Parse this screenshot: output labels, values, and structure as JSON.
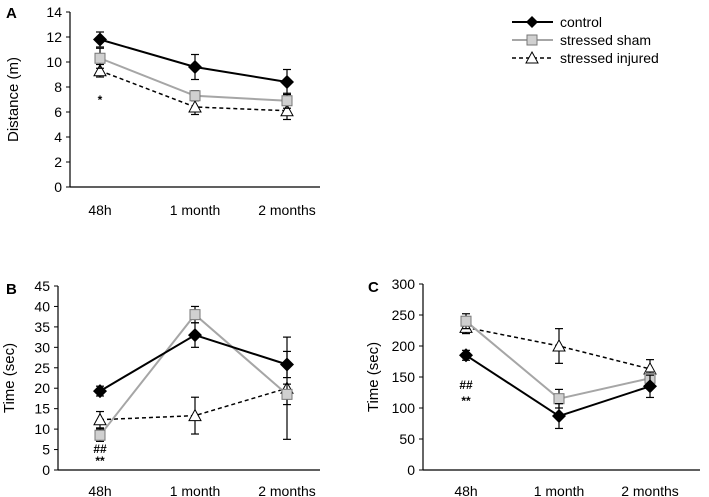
{
  "chart_data": [
    {
      "panel_label": "A",
      "type": "line",
      "categories": [
        "48h",
        "1 month",
        "2 months"
      ],
      "ylabel": "Distance (m)",
      "ylim": [
        0,
        14
      ],
      "yticks": [
        0,
        2,
        4,
        6,
        8,
        10,
        12,
        14
      ],
      "series": [
        {
          "name": "control",
          "values": [
            11.8,
            9.6,
            8.4
          ],
          "errors": [
            0.6,
            1.0,
            1.0
          ]
        },
        {
          "name": "stressed sham",
          "values": [
            10.3,
            7.3,
            6.9
          ],
          "errors": [
            0.8,
            0.4,
            0.6
          ]
        },
        {
          "name": "stressed injured",
          "values": [
            9.3,
            6.4,
            6.1
          ],
          "errors": [
            0.5,
            0.6,
            0.7
          ]
        }
      ],
      "annotations": [
        {
          "category_index": 0,
          "lines": [
            "*"
          ]
        }
      ]
    },
    {
      "panel_label": "B",
      "type": "line",
      "categories": [
        "48h",
        "1 month",
        "2 months"
      ],
      "ylabel": "Time (sec)",
      "ylim": [
        0,
        45
      ],
      "yticks": [
        0,
        5,
        10,
        15,
        20,
        25,
        30,
        35,
        40,
        45
      ],
      "series": [
        {
          "name": "control",
          "values": [
            19.3,
            33.0,
            25.8
          ],
          "errors": [
            1.2,
            3.0,
            3.2
          ]
        },
        {
          "name": "stressed sham",
          "values": [
            8.5,
            38.0,
            18.5
          ],
          "errors": [
            1.5,
            2.0,
            2.5
          ]
        },
        {
          "name": "stressed injured",
          "values": [
            12.3,
            13.3,
            20.0
          ],
          "errors": [
            2.0,
            4.5,
            12.5
          ]
        }
      ],
      "annotations": [
        {
          "category_index": 0,
          "lines": [
            "##",
            "**"
          ]
        }
      ]
    },
    {
      "panel_label": "C",
      "type": "line",
      "categories": [
        "48h",
        "1 month",
        "2 months"
      ],
      "ylabel": "Time (sec)",
      "ylim": [
        0,
        300
      ],
      "yticks": [
        0,
        50,
        100,
        150,
        200,
        250,
        300
      ],
      "series": [
        {
          "name": "control",
          "values": [
            185,
            87,
            135
          ],
          "errors": [
            8,
            20,
            18
          ]
        },
        {
          "name": "stressed sham",
          "values": [
            240,
            115,
            148
          ],
          "errors": [
            12,
            15,
            10
          ]
        },
        {
          "name": "stressed injured",
          "values": [
            230,
            200,
            163
          ],
          "errors": [
            10,
            28,
            15
          ]
        }
      ],
      "annotations": [
        {
          "category_index": 0,
          "lines": [
            "##",
            "**"
          ]
        }
      ]
    }
  ],
  "legend": {
    "entries": [
      "control",
      "stressed sham",
      "stressed injured"
    ]
  },
  "colors": {
    "control": "#000000",
    "stressed_sham_line": "#a6a6a6",
    "stressed_sham_marker": "#d0d0d0",
    "stressed_injured": "#000000"
  }
}
